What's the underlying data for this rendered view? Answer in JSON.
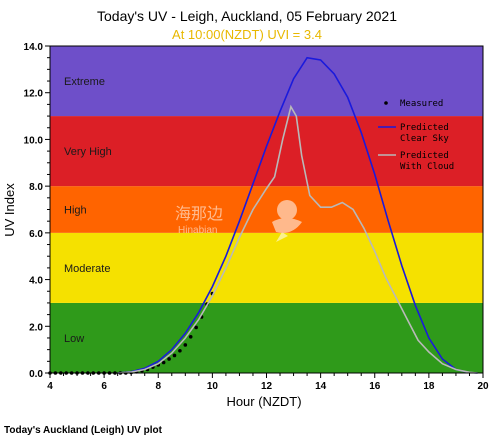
{
  "chart_data": {
    "type": "line",
    "title": "Today's UV - Leigh, Auckland, 05 February 2021",
    "subtitle": "At 10:00(NZDT) UVI =  3.4",
    "xlabel": "Hour (NZDT)",
    "ylabel": "UV Index",
    "xlim": [
      4,
      20
    ],
    "ylim": [
      0,
      14
    ],
    "x_ticks": [
      "4",
      "6",
      "8",
      "10",
      "12",
      "14",
      "16",
      "18",
      "20"
    ],
    "y_ticks": [
      "0.0",
      "2.0",
      "4.0",
      "6.0",
      "8.0",
      "10.0",
      "12.0",
      "14.0"
    ],
    "bands": [
      {
        "label": "Low",
        "from": 0,
        "to": 3,
        "color": "#2f9a1a"
      },
      {
        "label": "Moderate",
        "from": 3,
        "to": 6,
        "color": "#f5e100"
      },
      {
        "label": "High",
        "from": 6,
        "to": 8,
        "color": "#ff6400"
      },
      {
        "label": "Very High",
        "from": 8,
        "to": 11,
        "color": "#dc1f26"
      },
      {
        "label": "Extreme",
        "from": 11,
        "to": 14,
        "color": "#6e4fc9"
      }
    ],
    "series": [
      {
        "name": "Measured",
        "style": "points",
        "color": "#000000",
        "x": [
          4.0,
          4.2,
          4.4,
          4.6,
          4.8,
          5.0,
          5.2,
          5.4,
          5.6,
          5.8,
          6.0,
          6.2,
          6.4,
          6.6,
          6.8,
          7.0,
          7.2,
          7.4,
          7.6,
          7.8,
          8.0,
          8.2,
          8.4,
          8.6,
          8.8,
          9.0,
          9.2,
          9.4,
          9.6,
          9.8,
          10.0
        ],
        "y": [
          0,
          0,
          0,
          0,
          0,
          0,
          0,
          0,
          0,
          0,
          0,
          0,
          0,
          0,
          0,
          0.02,
          0.05,
          0.1,
          0.15,
          0.25,
          0.35,
          0.45,
          0.6,
          0.75,
          0.95,
          1.2,
          1.55,
          1.95,
          2.4,
          2.95,
          3.4
        ]
      },
      {
        "name": "Predicted Clear Sky",
        "style": "line",
        "color": "#1a1adc",
        "x": [
          6.5,
          7,
          7.5,
          8,
          8.5,
          9,
          9.5,
          10,
          10.5,
          11,
          11.5,
          12,
          12.5,
          13,
          13.5,
          14,
          14.5,
          15,
          15.5,
          16,
          16.5,
          17,
          17.5,
          18,
          18.5,
          19,
          19.5,
          19.8
        ],
        "y": [
          0,
          0.05,
          0.2,
          0.5,
          1.0,
          1.7,
          2.6,
          3.7,
          5.0,
          6.5,
          8.1,
          9.7,
          11.2,
          12.6,
          13.5,
          13.4,
          12.8,
          11.8,
          10.3,
          8.5,
          6.5,
          4.6,
          2.9,
          1.5,
          0.6,
          0.15,
          0.02,
          0
        ]
      },
      {
        "name": "Predicted With Cloud",
        "style": "line",
        "color": "#b9b9b9",
        "x": [
          6.5,
          7,
          7.5,
          8,
          8.5,
          9,
          9.5,
          10,
          10.5,
          11,
          11.5,
          12,
          12.3,
          12.6,
          12.9,
          13.1,
          13.3,
          13.6,
          14,
          14.4,
          14.8,
          15.2,
          15.6,
          16,
          16.4,
          16.8,
          17.2,
          17.6,
          18,
          18.5,
          19,
          19.5,
          19.8
        ],
        "y": [
          0,
          0.04,
          0.15,
          0.4,
          0.85,
          1.5,
          2.3,
          3.3,
          4.5,
          5.8,
          7.0,
          7.9,
          8.4,
          10.0,
          11.4,
          11.0,
          9.3,
          7.6,
          7.1,
          7.1,
          7.3,
          7.0,
          6.2,
          5.2,
          4.1,
          3.2,
          2.3,
          1.4,
          0.9,
          0.4,
          0.15,
          0.03,
          0
        ]
      }
    ],
    "legend_position": "top-right",
    "grid": false
  },
  "watermark": {
    "cn": "海那边",
    "en": "Hinabian"
  },
  "caption": "Today's Auckland (Leigh) UV plot"
}
